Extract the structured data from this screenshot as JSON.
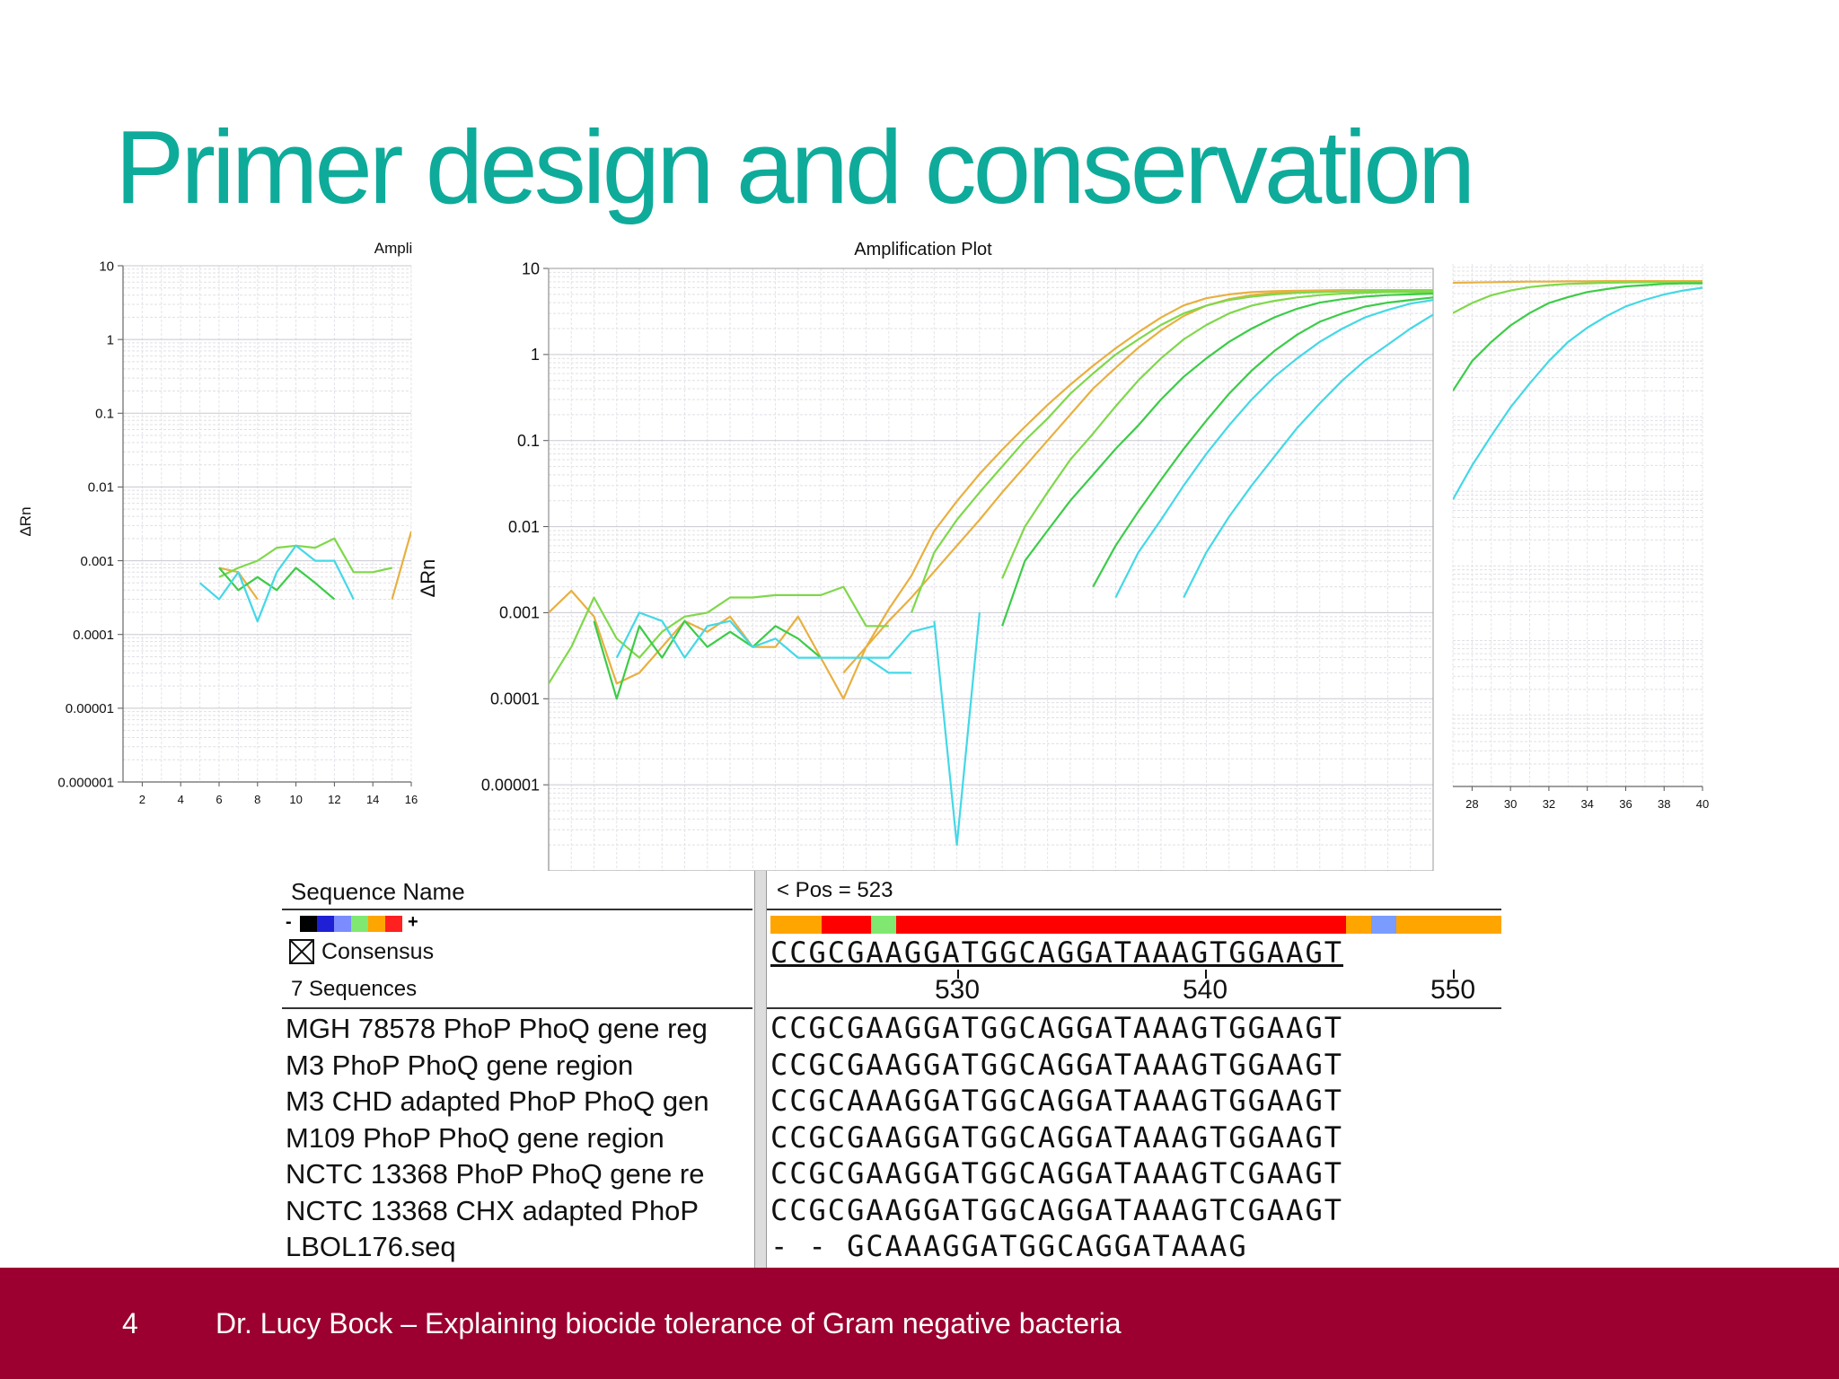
{
  "slide": {
    "title": "Primer design and conservation",
    "page_number": "4",
    "footer_text": "Dr. Lucy Bock – Explaining biocide tolerance of Gram negative bacteria"
  },
  "colors": {
    "title": "#0eab9a",
    "footer_bg": "#9b0030",
    "orange": "#e8b040",
    "green": "#7fd84a",
    "dark_green": "#3ccc48",
    "cyan": "#44d8e6"
  },
  "chart_data": [
    {
      "type": "line",
      "title": "Ampli",
      "ylabel": "ΔRn",
      "yscale": "log",
      "ylim": [
        1e-06,
        10
      ],
      "y_ticks": [
        "10",
        "1",
        "0.1",
        "0.01",
        "0.001",
        "0.0001",
        "0.00001",
        "0.000001"
      ],
      "xlim": [
        1,
        16
      ],
      "x_ticks": [
        "2",
        "4",
        "6",
        "8",
        "10",
        "12",
        "14",
        "16"
      ],
      "series": [
        {
          "color": "orange",
          "x": [
            6,
            7,
            8
          ],
          "y": [
            0.0008,
            0.0007,
            0.0003
          ]
        },
        {
          "color": "orange",
          "x": [
            15,
            16
          ],
          "y": [
            0.0003,
            0.0025
          ]
        },
        {
          "color": "green",
          "x": [
            6,
            7,
            8,
            9,
            10,
            11,
            12,
            13,
            14,
            15
          ],
          "y": [
            0.0006,
            0.0008,
            0.001,
            0.0015,
            0.0016,
            0.0015,
            0.002,
            0.0007,
            0.0007,
            0.0008
          ]
        },
        {
          "color": "dark_green",
          "x": [
            6,
            7,
            8,
            9,
            10,
            11,
            12
          ],
          "y": [
            0.0008,
            0.0004,
            0.0006,
            0.0004,
            0.0008,
            0.0005,
            0.0003
          ]
        },
        {
          "color": "cyan",
          "x": [
            5,
            6,
            7,
            8,
            9,
            10,
            11,
            12,
            13
          ],
          "y": [
            0.0005,
            0.0003,
            0.0007,
            0.00015,
            0.0007,
            0.0016,
            0.001,
            0.001,
            0.0003
          ]
        }
      ]
    },
    {
      "type": "line",
      "title": "Amplification Plot",
      "ylabel": "ΔRn",
      "yscale": "log",
      "ylim": [
        1e-06,
        10
      ],
      "y_ticks": [
        "10",
        "1",
        "0.1",
        "0.01",
        "0.001",
        "0.0001",
        "0.00001"
      ],
      "xlim": [
        1,
        40
      ],
      "series": [
        {
          "color": "orange",
          "x": [
            1,
            2,
            3,
            4,
            5,
            6,
            7,
            8,
            9,
            10,
            11,
            12,
            13,
            14,
            15,
            16,
            17,
            18,
            19,
            20,
            21,
            22,
            23,
            24,
            25,
            26,
            27,
            28,
            29,
            30,
            31,
            32,
            33,
            34,
            35,
            36,
            37,
            38,
            39,
            40
          ],
          "y": [
            0.001,
            0.0018,
            0.0009,
            0.00015,
            0.0002,
            0.0004,
            0.0008,
            0.0006,
            0.0009,
            0.0004,
            0.0004,
            0.0009,
            0.0003,
            0.0001,
            0.0004,
            0.0011,
            0.0027,
            0.0089,
            0.0197,
            0.0409,
            0.0783,
            0.1445,
            0.2587,
            0.4454,
            0.7389,
            1.1798,
            1.8135,
            2.6865,
            3.7154,
            4.5,
            5,
            5.3,
            5.45,
            5.5,
            5.55,
            5.6,
            5.6,
            5.6,
            5.6,
            5.6
          ]
        },
        {
          "color": "orange",
          "x": [
            14,
            15,
            16,
            17,
            18,
            19,
            20,
            21,
            22,
            23,
            24,
            25,
            26,
            27,
            28,
            29,
            30,
            31,
            32,
            33,
            34,
            35,
            36,
            37,
            38,
            39,
            40
          ],
          "y": [
            0.0002,
            0.0004,
            0.0008,
            0.0015,
            0.003,
            0.006,
            0.012,
            0.025,
            0.05,
            0.1,
            0.2,
            0.4,
            0.7,
            1.2,
            1.9,
            2.8,
            3.7,
            4.4,
            4.9,
            5.2,
            5.4,
            5.5,
            5.55,
            5.6,
            5.6,
            5.6,
            5.6
          ]
        },
        {
          "color": "green",
          "x": [
            1,
            2,
            3,
            4,
            5,
            6,
            7,
            8,
            9,
            10,
            11,
            12,
            13,
            14,
            15,
            16
          ],
          "y": [
            0.00015,
            0.0004,
            0.0015,
            0.0005,
            0.0003,
            0.0006,
            0.0009,
            0.001,
            0.0015,
            0.0015,
            0.0016,
            0.0016,
            0.0016,
            0.002,
            0.0007,
            0.0007
          ]
        },
        {
          "color": "green",
          "x": [
            17,
            18,
            19,
            20,
            21,
            22,
            23,
            24,
            25,
            26,
            27,
            28,
            29,
            30,
            31,
            32,
            33,
            34,
            35,
            36,
            37,
            38,
            39,
            40
          ],
          "y": [
            0.001,
            0.005,
            0.012,
            0.025,
            0.05,
            0.1,
            0.18,
            0.35,
            0.6,
            1,
            1.5,
            2.2,
            3,
            3.7,
            4.3,
            4.7,
            5,
            5.2,
            5.3,
            5.4,
            5.45,
            5.5,
            5.5,
            5.5
          ]
        },
        {
          "color": "green",
          "x": [
            21,
            22,
            23,
            24,
            25,
            26,
            27,
            28,
            29,
            30,
            31,
            32,
            33,
            34,
            35,
            36,
            37,
            38,
            39,
            40
          ],
          "y": [
            0.0025,
            0.01,
            0.025,
            0.06,
            0.12,
            0.25,
            0.5,
            0.9,
            1.5,
            2.2,
            3,
            3.7,
            4.2,
            4.6,
            4.9,
            5.1,
            5.2,
            5.3,
            5.3,
            5.3
          ]
        },
        {
          "color": "dark_green",
          "x": [
            3,
            4,
            5,
            6,
            7,
            8,
            9,
            10,
            11,
            12,
            13
          ],
          "y": [
            0.0008,
            0.0001,
            0.0007,
            0.0003,
            0.0008,
            0.0004,
            0.0006,
            0.0004,
            0.0007,
            0.0005,
            0.0003
          ]
        },
        {
          "color": "dark_green",
          "x": [
            21,
            22,
            23,
            24,
            25,
            26,
            27,
            28,
            29,
            30,
            31,
            32,
            33,
            34,
            35,
            36,
            37,
            38,
            39,
            40
          ],
          "y": [
            0.0007,
            0.004,
            0.009,
            0.02,
            0.04,
            0.08,
            0.15,
            0.3,
            0.55,
            0.9,
            1.4,
            2,
            2.7,
            3.4,
            4,
            4.4,
            4.7,
            4.9,
            5,
            5.1
          ]
        },
        {
          "color": "dark_green",
          "x": [
            25,
            26,
            27,
            28,
            29,
            30,
            31,
            32,
            33,
            34,
            35,
            36,
            37,
            38,
            39,
            40
          ],
          "y": [
            0.002,
            0.006,
            0.015,
            0.035,
            0.08,
            0.17,
            0.35,
            0.65,
            1.1,
            1.7,
            2.4,
            3,
            3.6,
            4,
            4.3,
            4.6
          ]
        },
        {
          "color": "cyan",
          "x": [
            4,
            5,
            6,
            7,
            8,
            9,
            10,
            11,
            12,
            13,
            14,
            15,
            16,
            17
          ],
          "y": [
            0.0003,
            0.001,
            0.0008,
            0.0003,
            0.0007,
            0.0008,
            0.0004,
            0.0005,
            0.0003,
            0.0003,
            0.0003,
            0.0003,
            0.0002,
            0.0002
          ]
        },
        {
          "color": "cyan",
          "x": [
            15,
            16,
            17,
            18
          ],
          "y": [
            0.0003,
            0.0003,
            0.0006,
            0.0007
          ]
        },
        {
          "color": "cyan",
          "x": [
            18,
            19,
            20
          ],
          "y": [
            0.0008,
            2e-06,
            0.001
          ]
        },
        {
          "color": "cyan",
          "x": [
            26,
            27,
            28,
            29,
            30,
            31,
            32,
            33,
            34,
            35,
            36,
            37,
            38,
            39,
            40
          ],
          "y": [
            0.0015,
            0.005,
            0.012,
            0.03,
            0.07,
            0.15,
            0.3,
            0.55,
            0.9,
            1.4,
            2,
            2.7,
            3.3,
            3.9,
            4.3
          ]
        },
        {
          "color": "cyan",
          "x": [
            29,
            30,
            31,
            32,
            33,
            34,
            35,
            36,
            37,
            38,
            39,
            40
          ],
          "y": [
            0.0015,
            0.005,
            0.013,
            0.03,
            0.065,
            0.14,
            0.27,
            0.5,
            0.85,
            1.3,
            2,
            2.9
          ]
        }
      ]
    },
    {
      "type": "line",
      "yscale": "log",
      "xlim": [
        27,
        40
      ],
      "x_ticks": [
        "28",
        "30",
        "32",
        "34",
        "36",
        "38",
        "40"
      ],
      "series": [
        {
          "color": "orange",
          "x": [
            27,
            28,
            29,
            30,
            31,
            32,
            33,
            34,
            35,
            36,
            37,
            38,
            39,
            40
          ],
          "y": [
            5.6,
            5.65,
            5.7,
            5.75,
            5.8,
            5.8,
            5.85,
            5.85,
            5.9,
            5.9,
            5.9,
            5.9,
            5.9,
            5.9
          ]
        },
        {
          "color": "green",
          "x": [
            27,
            28,
            29,
            30,
            31,
            32,
            33,
            34,
            35,
            36,
            37,
            38,
            39,
            40
          ],
          "y": [
            2.2,
            3,
            3.8,
            4.4,
            4.9,
            5.2,
            5.4,
            5.5,
            5.6,
            5.65,
            5.7,
            5.7,
            5.7,
            5.7
          ]
        },
        {
          "color": "dark_green",
          "x": [
            27,
            28,
            29,
            30,
            31,
            32,
            33,
            34,
            35,
            36,
            37,
            38,
            39,
            40
          ],
          "y": [
            0.2,
            0.5,
            0.9,
            1.5,
            2.2,
            3,
            3.6,
            4.2,
            4.6,
            5,
            5.2,
            5.4,
            5.5,
            5.5
          ]
        },
        {
          "color": "cyan",
          "x": [
            27,
            28,
            29,
            30,
            31,
            32,
            33,
            34,
            35,
            36,
            37,
            38,
            39,
            40
          ],
          "y": [
            0.007,
            0.02,
            0.05,
            0.12,
            0.25,
            0.5,
            0.9,
            1.4,
            2,
            2.7,
            3.3,
            3.9,
            4.4,
            4.8
          ]
        }
      ]
    }
  ],
  "alignment": {
    "name_header": "Sequence Name",
    "pos_label": "< Pos = 523",
    "scale_minus": "-",
    "scale_plus": "+",
    "scale_colors": [
      "#000000",
      "#1f1fd6",
      "#7b8cff",
      "#80e870",
      "#ffa500",
      "#ff2020"
    ],
    "consensus_label": "Consensus",
    "consensus_seq": "CCGCGAAGGATGGCAGGATAAAGTGGAAGT",
    "count_label": "7 Sequences",
    "ruler": [
      "530",
      "540",
      "550"
    ],
    "bar_segments": [
      {
        "color": "#ffa500",
        "frac": 0.07
      },
      {
        "color": "#ff0000",
        "frac": 0.068
      },
      {
        "color": "#80e870",
        "frac": 0.034
      },
      {
        "color": "#ff0000",
        "frac": 0.616
      },
      {
        "color": "#ffa500",
        "frac": 0.034
      },
      {
        "color": "#7b9cff",
        "frac": 0.034
      },
      {
        "color": "#ffa500",
        "frac": 0.144
      }
    ],
    "rows": [
      {
        "name": "MGH 78578 PhoP PhoQ gene reg",
        "seq": "CCGCGAAGGATGGCAGGATAAAGTGGAAGT"
      },
      {
        "name": "M3 PhoP PhoQ gene region",
        "seq": "CCGCGAAGGATGGCAGGATAAAGTGGAAGT"
      },
      {
        "name": "M3 CHD adapted PhoP PhoQ gen",
        "seq": "CCGCAAAGGATGGCAGGATAAAGTGGAAGT"
      },
      {
        "name": "M109 PhoP PhoQ gene region",
        "seq": "CCGCGAAGGATGGCAGGATAAAGTGGAAGT"
      },
      {
        "name": "NCTC 13368 PhoP PhoQ gene re",
        "seq": "CCGCGAAGGATGGCAGGATAAAGTCGAAGT"
      },
      {
        "name": "NCTC 13368 CHX adapted PhoP",
        "seq": "CCGCGAAGGATGGCAGGATAAAGTCGAAGT"
      },
      {
        "name": "LBOL176.seq",
        "seq": "- - GCAAAGGATGGCAGGATAAAG"
      }
    ]
  }
}
